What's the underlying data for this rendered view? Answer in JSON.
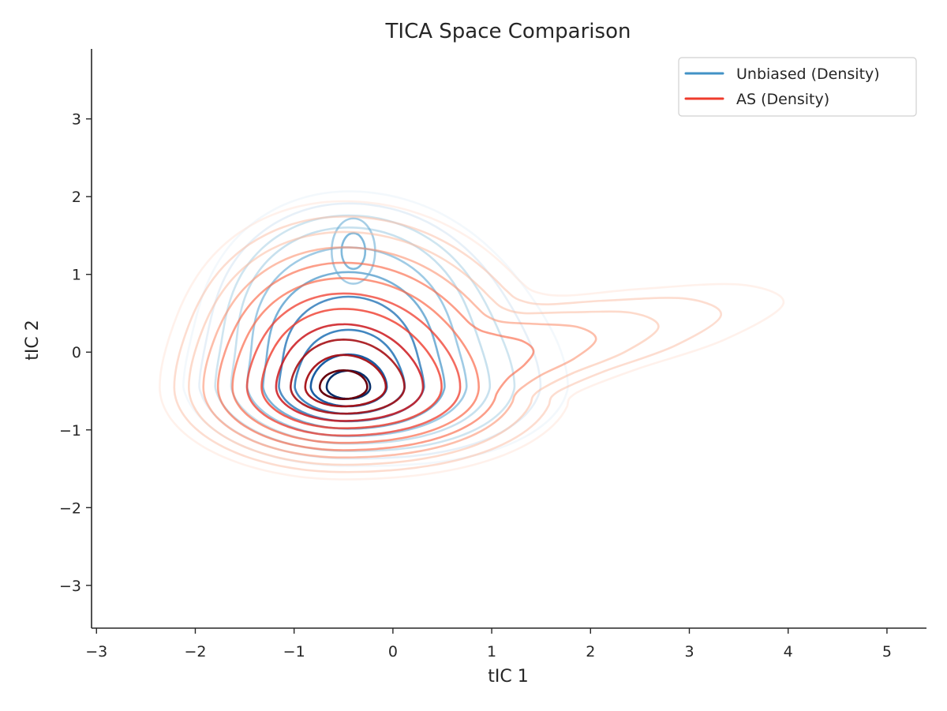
{
  "chart_data": {
    "type": "contour",
    "title": "TICA Space Comparison",
    "xlabel": "tIC 1",
    "ylabel": "tIC 2",
    "xlim": [
      -3.05,
      5.4
    ],
    "ylim": [
      -3.55,
      3.9
    ],
    "xticks": [
      -3,
      -2,
      -1,
      0,
      1,
      2,
      3,
      4,
      5
    ],
    "yticks": [
      -3,
      -2,
      -1,
      0,
      1,
      2,
      3
    ],
    "grid": false,
    "legend": {
      "placement": "top-right"
    },
    "series": [
      {
        "name": "Unbiased (Density)",
        "legend_color": "#4292c6",
        "main_peak": {
          "x": -0.45,
          "y": -0.45
        },
        "secondary_peak": {
          "x": -0.4,
          "y": 1.3
        },
        "levels": 10,
        "colors": [
          "#deebf7",
          "#c6dbef",
          "#9ecae1",
          "#6baed6",
          "#4292c6",
          "#2171b5",
          "#08519c",
          "#08306b"
        ]
      },
      {
        "name": "AS (Density)",
        "legend_color": "#ef3b2c",
        "main_peak": {
          "x": -0.5,
          "y": -0.45
        },
        "secondary_peak": {
          "x": 2.6,
          "y": 0.55
        },
        "levels": 12,
        "colors": [
          "#fee0d2",
          "#fcbba1",
          "#fc9272",
          "#fb6a4a",
          "#ef3b2c",
          "#cb181d",
          "#a50f15",
          "#67000d"
        ]
      }
    ]
  },
  "tick_labels": {
    "x": [
      "−3",
      "−2",
      "−1",
      "0",
      "1",
      "2",
      "3",
      "4",
      "5"
    ],
    "y": [
      "−3",
      "−2",
      "−1",
      "0",
      "1",
      "2",
      "3"
    ]
  }
}
